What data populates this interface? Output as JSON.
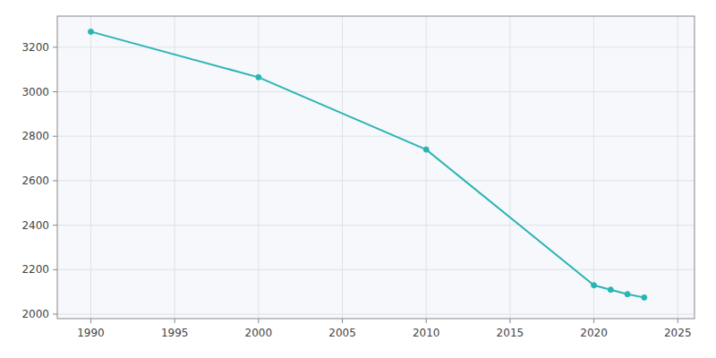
{
  "chart_data": {
    "type": "line",
    "x": [
      1990,
      2000,
      2010,
      2020,
      2021,
      2022,
      2023
    ],
    "values": [
      3270,
      3065,
      2740,
      2130,
      2110,
      2090,
      2075
    ],
    "color": "#2ab5b5",
    "marker": "circle",
    "xlim": [
      1988,
      2026
    ],
    "ylim": [
      1980,
      3340
    ],
    "xticks": [
      1990,
      1995,
      2000,
      2005,
      2010,
      2015,
      2020,
      2025
    ],
    "yticks": [
      2000,
      2200,
      2400,
      2600,
      2800,
      3000,
      3200
    ],
    "grid": true
  }
}
